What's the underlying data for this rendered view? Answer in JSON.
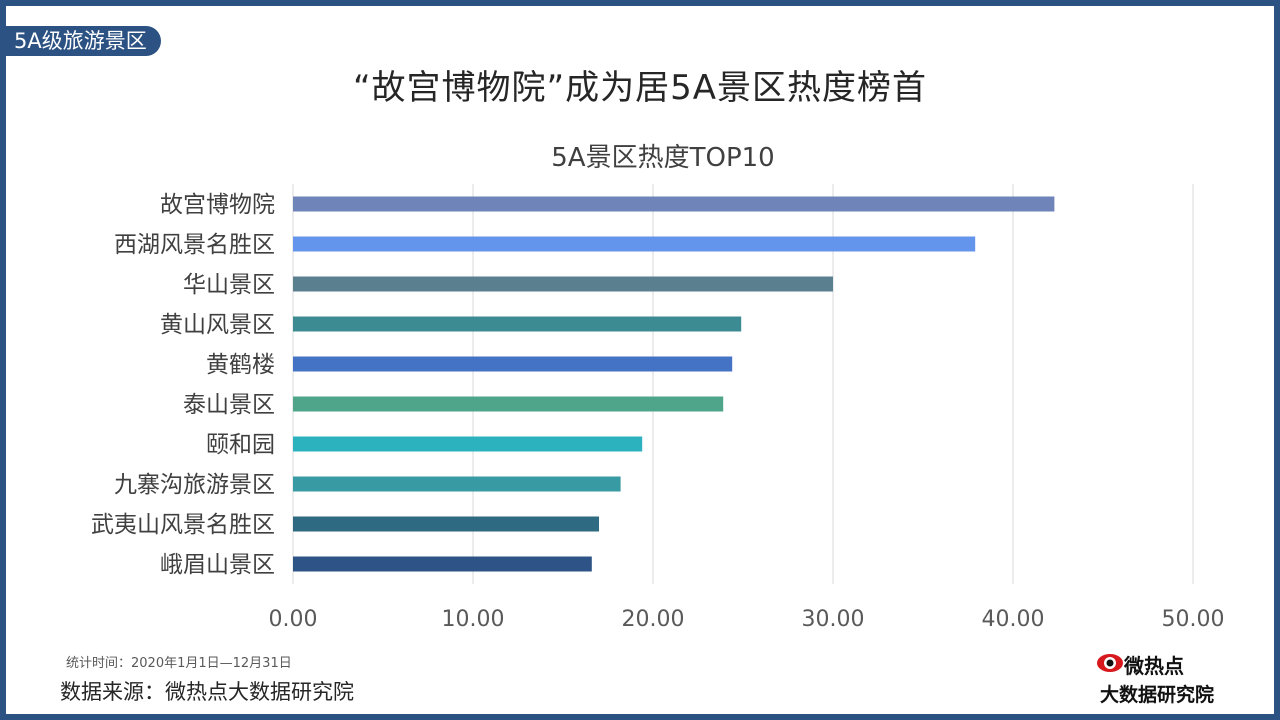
{
  "header": {
    "tag": "5A级旅游景区",
    "title": "“故宫博物院”成为居5A景区热度榜首"
  },
  "footer": {
    "date_range": "统计时间：2020年1月1日—12月31日",
    "source": "数据来源：微热点大数据研究院"
  },
  "logo": {
    "line1": "微热点",
    "line2": "大数据研究院",
    "icon": "red-eye-icon"
  },
  "chart_data": {
    "type": "bar",
    "orientation": "horizontal",
    "title": "5A景区热度TOP10",
    "categories": [
      "故宫博物院",
      "西湖风景名胜区",
      "华山景区",
      "黄山风景区",
      "黄鹤楼",
      "泰山景区",
      "颐和园",
      "九寨沟旅游景区",
      "武夷山风景名胜区",
      "峨眉山景区"
    ],
    "values": [
      42.3,
      37.9,
      30.0,
      24.9,
      24.4,
      23.9,
      19.4,
      18.2,
      17.0,
      16.6
    ],
    "colors": [
      "#6f84b8",
      "#6495ed",
      "#5a7f8f",
      "#3c8a92",
      "#4472c4",
      "#4ea58a",
      "#2cb2bf",
      "#389aa3",
      "#2e6a82",
      "#2e5487"
    ],
    "xlim": [
      0,
      50
    ],
    "xticks": [
      "0.00",
      "10.00",
      "20.00",
      "30.00",
      "40.00",
      "50.00"
    ],
    "grid": true,
    "legend": "none"
  }
}
